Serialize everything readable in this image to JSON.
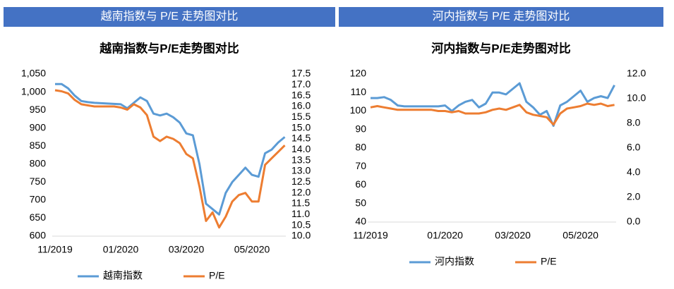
{
  "chart_data": [
    {
      "type": "line",
      "header": "越南指数与 P/E 走势图对比",
      "title": "越南指数与P/E走势图对比",
      "categories": [
        "11/2019",
        null,
        null,
        null,
        null,
        null,
        null,
        null,
        null,
        null,
        "01/2020",
        null,
        null,
        null,
        null,
        null,
        null,
        null,
        null,
        null,
        "03/2020",
        null,
        null,
        null,
        null,
        null,
        null,
        null,
        null,
        null,
        "05/2020",
        null,
        null,
        null,
        null,
        null
      ],
      "series": [
        {
          "name": "越南指数",
          "color": "#5b9bd5",
          "values": [
            1022,
            1022,
            1010,
            990,
            975,
            972,
            970,
            969,
            968,
            967,
            966,
            955,
            970,
            985,
            975,
            940,
            935,
            940,
            930,
            915,
            885,
            880,
            800,
            690,
            675,
            660,
            720,
            750,
            770,
            790,
            770,
            765,
            830,
            840,
            860,
            875
          ]
        },
        {
          "name": "P/E",
          "color": "#ed7d31",
          "axis": "y2",
          "values": [
            16.75,
            16.7,
            16.6,
            16.3,
            16.1,
            16.05,
            16.0,
            16.0,
            16.0,
            16.0,
            15.95,
            15.85,
            16.1,
            15.95,
            15.6,
            14.6,
            14.4,
            14.6,
            14.5,
            14.3,
            13.8,
            13.6,
            12.3,
            10.7,
            11.1,
            10.4,
            10.9,
            11.6,
            11.9,
            12.0,
            11.6,
            11.6,
            13.3,
            13.6,
            13.9,
            14.2
          ]
        }
      ],
      "ylim": [
        600,
        1050
      ],
      "yticks": [
        600,
        650,
        700,
        750,
        800,
        850,
        900,
        950,
        {
          "value": 1000,
          "label": "1,000"
        },
        {
          "value": 1050,
          "label": "1,050"
        }
      ],
      "y2lim": [
        10,
        17.5
      ],
      "y2ticks": [
        {
          "value": 10,
          "label": "10.0"
        },
        10.5,
        {
          "value": 11,
          "label": "11.0"
        },
        11.5,
        {
          "value": 12,
          "label": "12.0"
        },
        12.5,
        {
          "value": 13,
          "label": "13.0"
        },
        13.5,
        {
          "value": 14,
          "label": "14.0"
        },
        14.5,
        {
          "value": 15,
          "label": "15.0"
        },
        15.5,
        {
          "value": 16,
          "label": "16.0"
        },
        16.5,
        {
          "value": 17,
          "label": "17.0"
        },
        17.5
      ],
      "legend": "bottom"
    },
    {
      "type": "line",
      "header": "河内指数与 P/E 走势图对比",
      "title": "河内指数与P/E走势图对比",
      "categories": [
        "11/2019",
        null,
        null,
        null,
        null,
        null,
        null,
        null,
        null,
        null,
        null,
        "01/2020",
        null,
        null,
        null,
        null,
        null,
        null,
        null,
        null,
        null,
        "03/2020",
        null,
        null,
        null,
        null,
        null,
        null,
        null,
        null,
        null,
        "05/2020",
        null,
        null,
        null,
        null,
        null
      ],
      "series": [
        {
          "name": "河内指数",
          "color": "#5b9bd5",
          "values": [
            107,
            107,
            107.5,
            106,
            103,
            102.5,
            102.5,
            102.5,
            102.5,
            102.5,
            102.5,
            103,
            100,
            103,
            105,
            106,
            102,
            104,
            110,
            110,
            109,
            112,
            115,
            105,
            102,
            98,
            100,
            92,
            103,
            105,
            108,
            111,
            105,
            107,
            108,
            107,
            114
          ]
        },
        {
          "name": "P/E",
          "color": "#ed7d31",
          "axis": "y2",
          "values": [
            9.3,
            9.4,
            9.3,
            9.2,
            9.1,
            9.1,
            9.1,
            9.1,
            9.1,
            9.1,
            9.0,
            9.0,
            8.9,
            9.0,
            8.8,
            8.8,
            8.8,
            8.9,
            9.1,
            9.2,
            9.1,
            9.3,
            9.5,
            8.9,
            8.7,
            8.6,
            8.5,
            7.9,
            8.8,
            9.2,
            9.3,
            9.4,
            9.6,
            9.5,
            9.6,
            9.4,
            9.5
          ]
        }
      ],
      "ylim": [
        40,
        120
      ],
      "yticks": [
        40,
        50,
        60,
        70,
        80,
        90,
        100,
        110,
        120
      ],
      "y2lim": [
        0,
        12
      ],
      "y2ticks": [
        {
          "value": 0,
          "label": "0.0"
        },
        {
          "value": 2,
          "label": "2.0"
        },
        {
          "value": 4,
          "label": "4.0"
        },
        {
          "value": 6,
          "label": "6.0"
        },
        {
          "value": 8,
          "label": "8.0"
        },
        {
          "value": 10,
          "label": "10.0"
        },
        {
          "value": 12,
          "label": "12.0"
        }
      ],
      "legend": "bottom"
    }
  ]
}
